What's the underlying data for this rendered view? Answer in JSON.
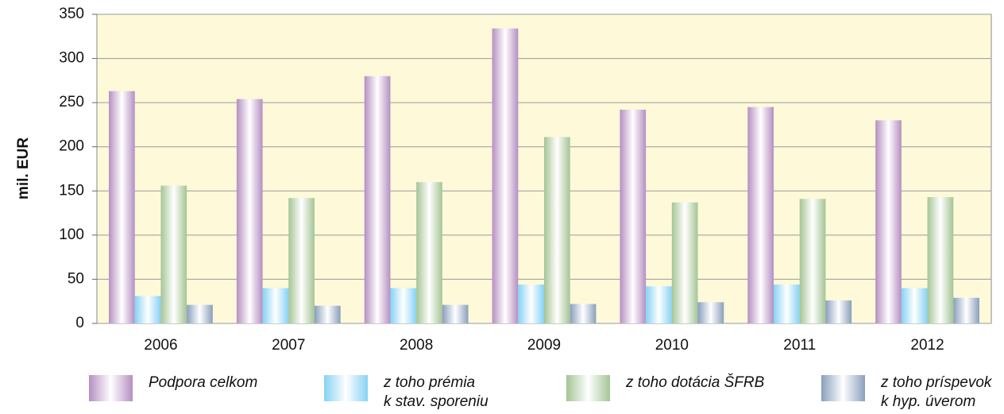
{
  "chart_data": {
    "type": "bar",
    "y_label": "mil. EUR",
    "categories": [
      "2006",
      "2007",
      "2008",
      "2009",
      "2010",
      "2011",
      "2012"
    ],
    "series": [
      {
        "name": "Podpora celkom",
        "color": "#b58fc2",
        "values": [
          263,
          254,
          280,
          334,
          242,
          245,
          230
        ]
      },
      {
        "name": "z toho prémia\nk stav. sporeniu",
        "color": "#86d2f4",
        "values": [
          31,
          40,
          40,
          44,
          42,
          44,
          40
        ]
      },
      {
        "name": "z toho dotácia ŠFRB",
        "color": "#a4c595",
        "values": [
          156,
          142,
          160,
          211,
          137,
          141,
          143
        ]
      },
      {
        "name": "z toho príspevok\nk hyp. úverom",
        "color": "#8a9fbd",
        "values": [
          21,
          20,
          21,
          22,
          24,
          26,
          29
        ]
      }
    ],
    "ylim": [
      0,
      350
    ],
    "yticks": [
      0,
      50,
      100,
      150,
      200,
      250,
      300,
      350
    ],
    "grid": true
  }
}
